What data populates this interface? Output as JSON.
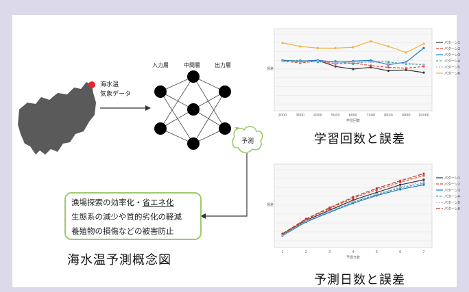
{
  "diagram": {
    "input_label_1": "海水温",
    "input_label_2": "気象データ",
    "layer_input": "入力層",
    "layer_hidden": "中間層",
    "layer_output": "出力層",
    "predict_label": "予測",
    "benefits": {
      "line1_a": "漁場探索の効率化・",
      "line1_b": "省エネ化",
      "line2": "生態系の減少や質的劣化の軽減",
      "line3": "養殖物の損傷などの被害防止"
    },
    "title": "海水温予測概念図"
  },
  "chart1_title": "学習回数と誤差",
  "chart2_title": "予測日数と誤差",
  "colors": {
    "green": "#9ccb6c",
    "map": "#5a5a5a",
    "marker": "#e8232a"
  },
  "chart_data": [
    {
      "type": "line",
      "xlabel": "学習回数",
      "ylabel": "誤差",
      "categories": [
        "2000",
        "3000",
        "4000",
        "5000",
        "6000",
        "7000",
        "8000",
        "9000",
        "10000"
      ],
      "ylim": [
        0.8,
        0.88
      ],
      "series": [
        {
          "name": "パターン1",
          "color": "#333333",
          "values": [
            0.85,
            0.849,
            0.85,
            0.843,
            0.84,
            0.842,
            0.838,
            0.839,
            0.836
          ]
        },
        {
          "name": "パターン2",
          "color": "#e84a3c",
          "values": [
            0.849,
            0.847,
            0.849,
            0.846,
            0.847,
            0.844,
            0.842,
            0.841,
            0.843
          ]
        },
        {
          "name": "パターン3",
          "color": "#1e78c8",
          "values": [
            0.85,
            0.849,
            0.85,
            0.848,
            0.849,
            0.85,
            0.845,
            0.848,
            0.864
          ]
        },
        {
          "name": "パターン4",
          "color": "#2aa89a",
          "values": [
            0.849,
            0.85,
            0.848,
            0.849,
            0.846,
            0.849,
            0.848,
            0.846,
            0.845
          ]
        },
        {
          "name": "パターン5",
          "color": "#b9a8d8",
          "values": [
            0.849,
            0.848,
            0.849,
            0.847,
            0.848,
            0.848,
            0.846,
            0.847,
            0.845
          ]
        },
        {
          "name": "パターン6",
          "color": "#f2b33d",
          "values": [
            0.87,
            0.866,
            0.864,
            0.864,
            0.865,
            0.872,
            0.866,
            0.859,
            0.869
          ]
        }
      ]
    },
    {
      "type": "line",
      "xlabel": "予測日数",
      "ylabel": "誤差",
      "categories": [
        "1",
        "2",
        "3",
        "4",
        "5",
        "6",
        "7"
      ],
      "ylim": [
        0,
        1.4
      ],
      "series": [
        {
          "name": "パターン1",
          "color": "#333333",
          "values": [
            0.12,
            0.4,
            0.6,
            0.8,
            0.95,
            1.1,
            1.2
          ]
        },
        {
          "name": "パターン2",
          "color": "#e84a3c",
          "values": [
            0.13,
            0.42,
            0.63,
            0.84,
            1.0,
            1.15,
            1.28
          ]
        },
        {
          "name": "パターン3",
          "color": "#1e78c8",
          "values": [
            0.1,
            0.37,
            0.56,
            0.74,
            0.89,
            1.01,
            1.1
          ]
        },
        {
          "name": "パターン4",
          "color": "#2aa89a",
          "values": [
            0.11,
            0.38,
            0.57,
            0.76,
            0.91,
            1.04,
            1.13
          ]
        },
        {
          "name": "パターン5",
          "color": "#b9a8d8",
          "values": [
            0.11,
            0.39,
            0.58,
            0.77,
            0.92,
            1.06,
            1.16
          ]
        },
        {
          "name": "パターン6",
          "color": "#c0392b",
          "values": [
            0.14,
            0.43,
            0.65,
            0.86,
            1.03,
            1.18,
            1.32
          ]
        }
      ]
    }
  ]
}
